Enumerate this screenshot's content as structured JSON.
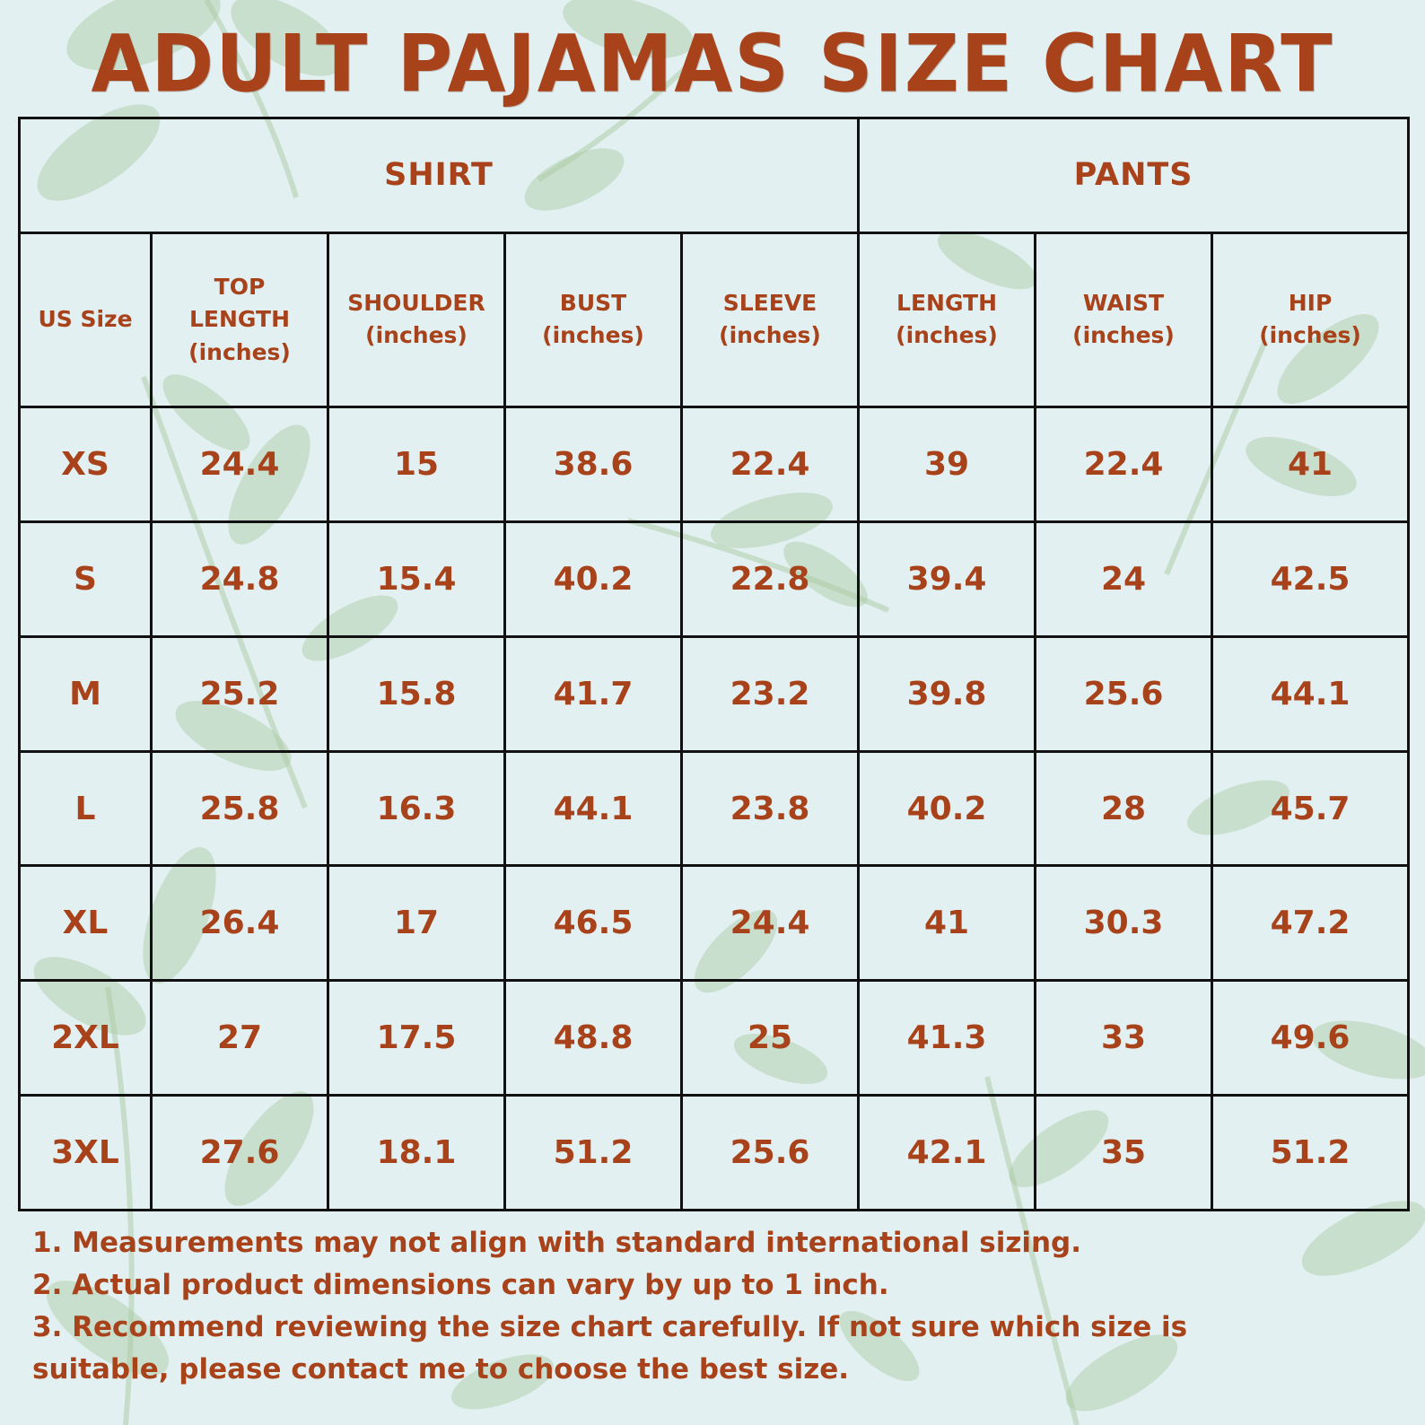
{
  "title": "ADULT PAJAMAS SIZE CHART",
  "groups": {
    "shirt": "SHIRT",
    "pants": "PANTS"
  },
  "columns": {
    "us_size": "US Size",
    "top_length": [
      "TOP",
      "LENGTH",
      "(inches)"
    ],
    "shoulder": [
      "SHOULDER",
      "(inches)"
    ],
    "bust": [
      "BUST",
      "(inches)"
    ],
    "sleeve": [
      "SLEEVE",
      "(inches)"
    ],
    "length": [
      "LENGTH",
      "(inches)"
    ],
    "waist": [
      "WAIST",
      "(inches)"
    ],
    "hip": [
      "HIP",
      "(inches)"
    ]
  },
  "rows": [
    [
      "XS",
      "24.4",
      "15",
      "38.6",
      "22.4",
      "39",
      "22.4",
      "41"
    ],
    [
      "S",
      "24.8",
      "15.4",
      "40.2",
      "22.8",
      "39.4",
      "24",
      "42.5"
    ],
    [
      "M",
      "25.2",
      "15.8",
      "41.7",
      "23.2",
      "39.8",
      "25.6",
      "44.1"
    ],
    [
      "L",
      "25.8",
      "16.3",
      "44.1",
      "23.8",
      "40.2",
      "28",
      "45.7"
    ],
    [
      "XL",
      "26.4",
      "17",
      "46.5",
      "24.4",
      "41",
      "30.3",
      "47.2"
    ],
    [
      "2XL",
      "27",
      "17.5",
      "48.8",
      "25",
      "41.3",
      "33",
      "49.6"
    ],
    [
      "3XL",
      "27.6",
      "18.1",
      "51.2",
      "25.6",
      "42.1",
      "35",
      "51.2"
    ]
  ],
  "notes": [
    "1. Measurements may not align with standard international sizing.",
    "2. Actual product dimensions can vary by up to 1 inch.",
    "3. Recommend reviewing the size chart carefully. If not sure which size is",
    "suitable, please contact me to choose the best size."
  ],
  "colors": {
    "background": "#e3f0f1",
    "text": "#a8421b",
    "border": "#111111",
    "leaf": "#a8c9a3"
  }
}
